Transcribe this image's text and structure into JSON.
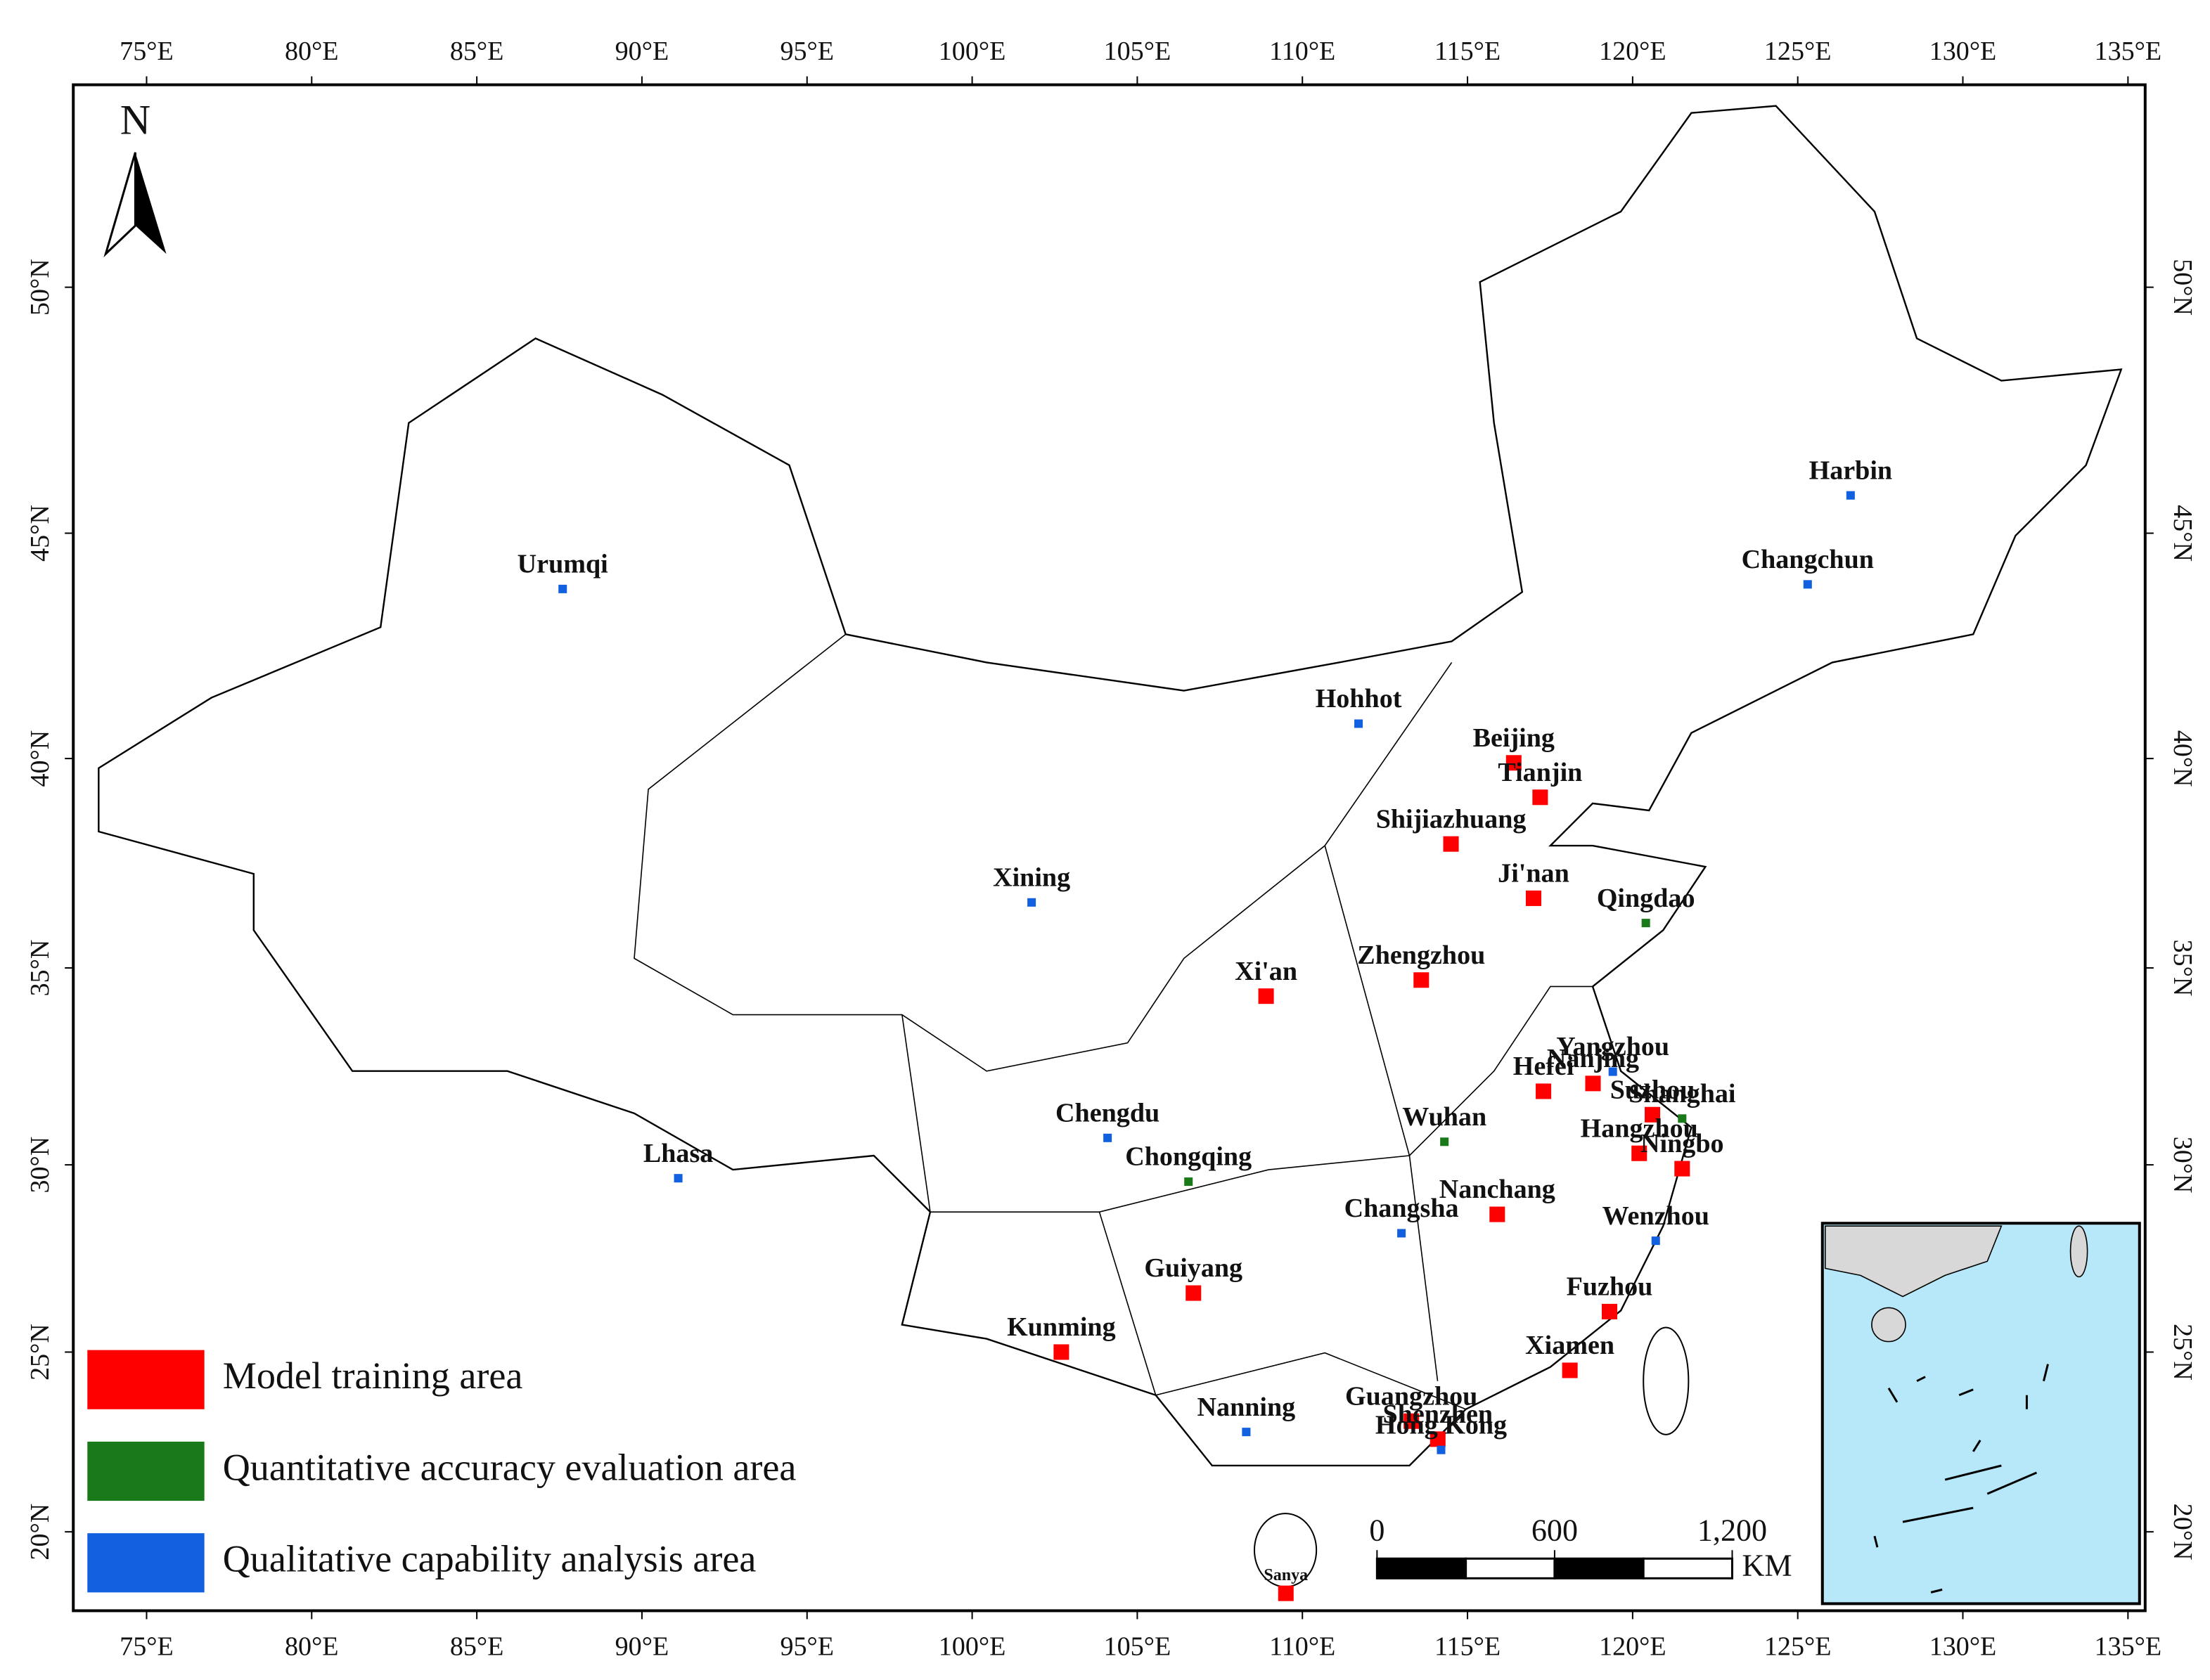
{
  "map": {
    "north_label": "N",
    "lon_ticks": [
      {
        "value": 75,
        "label": "75°E"
      },
      {
        "value": 80,
        "label": "80°E"
      },
      {
        "value": 85,
        "label": "85°E"
      },
      {
        "value": 90,
        "label": "90°E"
      },
      {
        "value": 95,
        "label": "95°E"
      },
      {
        "value": 100,
        "label": "100°E"
      },
      {
        "value": 105,
        "label": "105°E"
      },
      {
        "value": 110,
        "label": "110°E"
      },
      {
        "value": 115,
        "label": "115°E"
      },
      {
        "value": 120,
        "label": "120°E"
      },
      {
        "value": 125,
        "label": "125°E"
      },
      {
        "value": 130,
        "label": "130°E"
      },
      {
        "value": 135,
        "label": "135°E"
      }
    ],
    "lat_ticks": [
      {
        "value": 20,
        "label": "20°N"
      },
      {
        "value": 25,
        "label": "25°N"
      },
      {
        "value": 30,
        "label": "30°N"
      },
      {
        "value": 35,
        "label": "35°N"
      },
      {
        "value": 40,
        "label": "40°N"
      },
      {
        "value": 45,
        "label": "45°N"
      },
      {
        "value": 50,
        "label": "50°N"
      }
    ],
    "legend": [
      {
        "name": "Model training area",
        "color": "#ff0000",
        "cities": [
          {
            "name": "Kunming",
            "lon": 102.7,
            "lat": 25.0
          },
          {
            "name": "Guiyang",
            "lon": 106.7,
            "lat": 26.6
          },
          {
            "name": "Xi'an",
            "lon": 108.9,
            "lat": 34.3
          },
          {
            "name": "Beijing",
            "lon": 116.4,
            "lat": 39.9
          },
          {
            "name": "Tianjin",
            "lon": 117.2,
            "lat": 39.1
          },
          {
            "name": "Shijiazhuang",
            "lon": 114.5,
            "lat": 38.0
          },
          {
            "name": "Ji'nan",
            "lon": 117.0,
            "lat": 36.7
          },
          {
            "name": "Zhengzhou",
            "lon": 113.6,
            "lat": 34.7
          },
          {
            "name": "Nanchang",
            "lon": 115.9,
            "lat": 28.7
          },
          {
            "name": "Hefei",
            "lon": 117.3,
            "lat": 31.9
          },
          {
            "name": "Nanjing",
            "lon": 118.8,
            "lat": 32.1
          },
          {
            "name": "Suzhou",
            "lon": 120.6,
            "lat": 31.3
          },
          {
            "name": "Hangzhou",
            "lon": 120.2,
            "lat": 30.3
          },
          {
            "name": "Ningbo",
            "lon": 121.5,
            "lat": 29.9
          },
          {
            "name": "Fuzhou",
            "lon": 119.3,
            "lat": 26.1
          },
          {
            "name": "Xiamen",
            "lon": 118.1,
            "lat": 24.5
          },
          {
            "name": "Guangzhou",
            "lon": 113.3,
            "lat": 23.1
          },
          {
            "name": "Shenzhen",
            "lon": 114.1,
            "lat": 22.6
          },
          {
            "name": "Sanya",
            "lon": 109.5,
            "lat": 18.25
          }
        ]
      },
      {
        "name": "Quantitative accuracy evaluation area",
        "color": "#1a7a1a",
        "cities": [
          {
            "name": "Chongqing",
            "lon": 106.55,
            "lat": 29.56
          },
          {
            "name": "Qingdao",
            "lon": 120.4,
            "lat": 36.1
          },
          {
            "name": "Wuhan",
            "lon": 114.3,
            "lat": 30.6
          },
          {
            "name": "Shanghai",
            "lon": 121.5,
            "lat": 31.2
          }
        ]
      },
      {
        "name": "Qualitative capability analysis area",
        "color": "#1060e0",
        "cities": [
          {
            "name": "Urumqi",
            "lon": 87.6,
            "lat": 43.8
          },
          {
            "name": "Lhasa",
            "lon": 91.1,
            "lat": 29.65
          },
          {
            "name": "Xining",
            "lon": 101.8,
            "lat": 36.6
          },
          {
            "name": "Chengdu",
            "lon": 104.1,
            "lat": 30.7
          },
          {
            "name": "Nanning",
            "lon": 108.3,
            "lat": 22.8
          },
          {
            "name": "Hohhot",
            "lon": 111.7,
            "lat": 40.8
          },
          {
            "name": "Changsha",
            "lon": 113.0,
            "lat": 28.2
          },
          {
            "name": "Yangzhou",
            "lon": 119.4,
            "lat": 32.4
          },
          {
            "name": "Wenzhou",
            "lon": 120.7,
            "lat": 28.0
          },
          {
            "name": "Hong Kong",
            "lon": 114.2,
            "lat": 22.3
          },
          {
            "name": "Harbin",
            "lon": 126.6,
            "lat": 45.8
          },
          {
            "name": "Changchun",
            "lon": 125.3,
            "lat": 43.9
          }
        ]
      }
    ],
    "scale_bar": {
      "ticks": [
        0,
        600,
        {
          "value": 1200,
          "label": "1,200"
        }
      ],
      "unit": "KM"
    }
  }
}
